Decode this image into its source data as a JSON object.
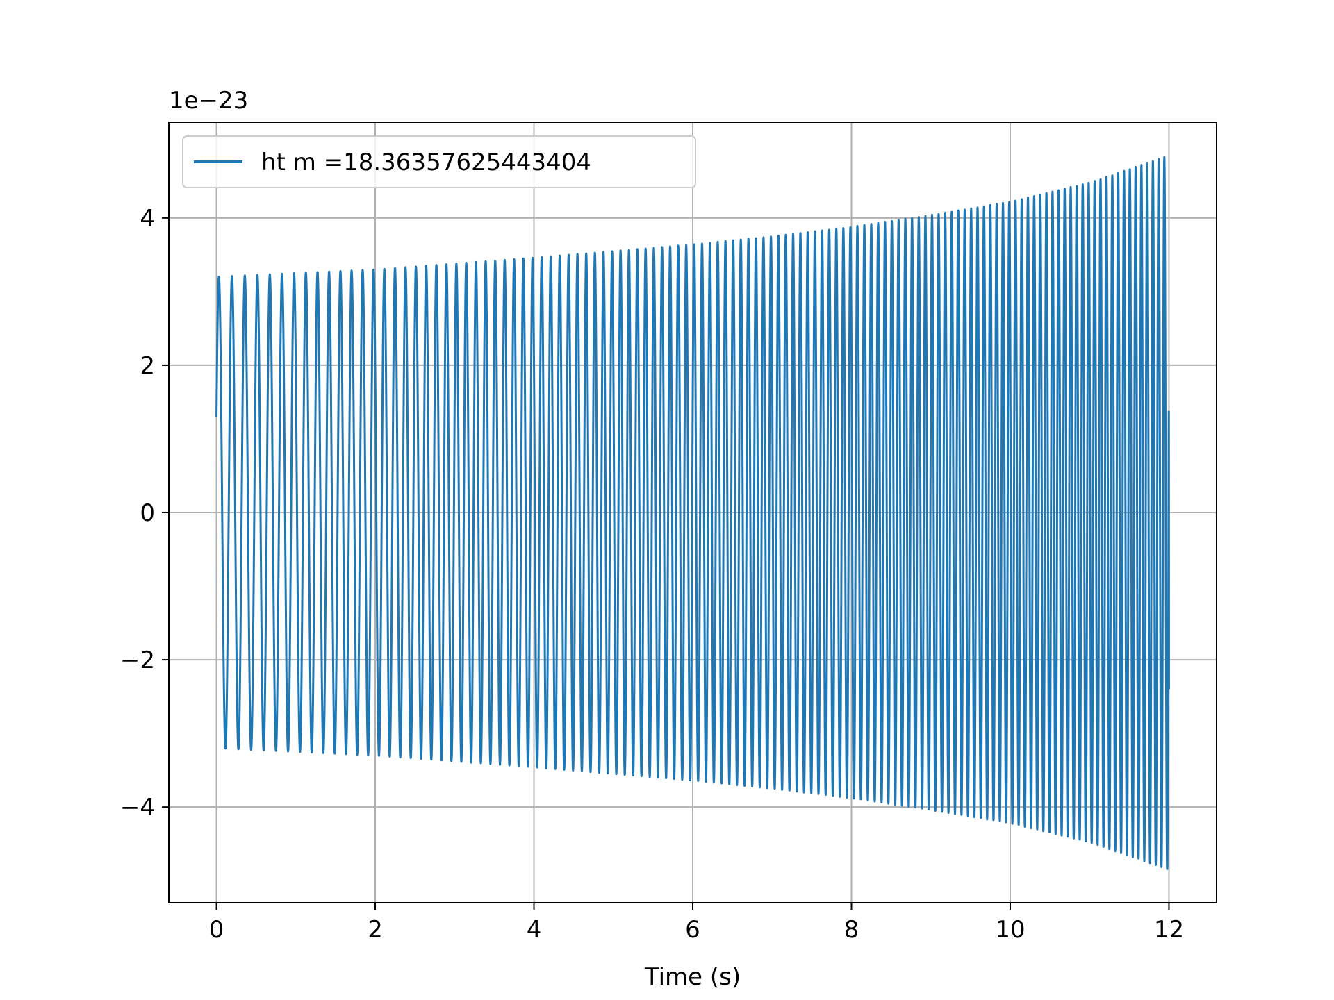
{
  "chart_data": {
    "type": "line",
    "title": "",
    "xlabel": "Time (s)",
    "ylabel": "",
    "y_offset_label": "1e−23",
    "y_scale_exponent": -23,
    "xlim": [
      -0.6,
      12.6
    ],
    "ylim": [
      -5.3e-23,
      5.3e-23
    ],
    "xticks": [
      0,
      2,
      4,
      6,
      8,
      10,
      12
    ],
    "xtick_labels": [
      "0",
      "2",
      "4",
      "6",
      "8",
      "10",
      "12"
    ],
    "yticks": [
      -4e-23,
      -2e-23,
      0,
      2e-23,
      4e-23
    ],
    "ytick_labels": [
      "−4",
      "−2",
      "0",
      "2",
      "4"
    ],
    "grid": true,
    "legend_position": "upper-left",
    "series": [
      {
        "name": "ht m =18.36357625443404",
        "color": "#1f77b4",
        "signal": "chirp",
        "t_start": 0,
        "t_end": 12,
        "initial_value": 1.3e-23,
        "final_value": -2.4e-23,
        "cycles": 120,
        "envelope": [
          {
            "t": 0,
            "amp": 3.2e-23
          },
          {
            "t": 1,
            "amp": 3.25e-23
          },
          {
            "t": 2,
            "amp": 3.3e-23
          },
          {
            "t": 3,
            "amp": 3.38e-23
          },
          {
            "t": 4,
            "amp": 3.46e-23
          },
          {
            "t": 5,
            "amp": 3.55e-23
          },
          {
            "t": 6,
            "amp": 3.64e-23
          },
          {
            "t": 7,
            "amp": 3.75e-23
          },
          {
            "t": 8,
            "amp": 3.88e-23
          },
          {
            "t": 9,
            "amp": 4.04e-23
          },
          {
            "t": 10,
            "amp": 4.22e-23
          },
          {
            "t": 11,
            "amp": 4.48e-23
          },
          {
            "t": 12,
            "amp": 4.85e-23
          }
        ]
      }
    ]
  }
}
